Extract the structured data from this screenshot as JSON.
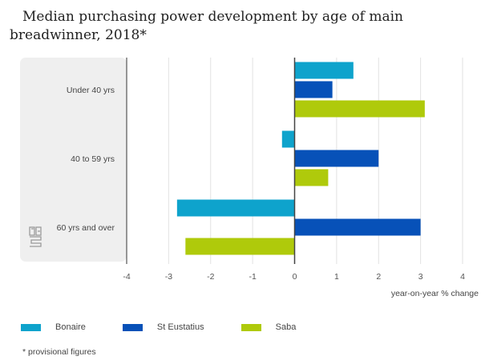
{
  "chart_data": {
    "type": "bar",
    "orientation": "horizontal",
    "title": "Median purchasing power development by age of main breadwinner, 2018*",
    "title_lines": [
      "Median purchasing power development by age of main",
      "breadwinner, 2018*"
    ],
    "categories": [
      "Under 40 yrs",
      "40 to 59 yrs",
      "60 yrs and over"
    ],
    "series": [
      {
        "name": "Bonaire",
        "color": "#0ea3cc",
        "values": [
          1.4,
          -0.3,
          -2.8
        ]
      },
      {
        "name": "St Eustatius",
        "color": "#0751b8",
        "values": [
          0.9,
          2.0,
          3.0
        ]
      },
      {
        "name": "Saba",
        "color": "#afca0b",
        "values": [
          3.1,
          0.8,
          -2.6
        ]
      }
    ],
    "xlabel": "year-on-year % change",
    "ylabel": "",
    "xlim": [
      -4,
      4
    ],
    "xticks": [
      "-4",
      "-3",
      "-2",
      "-1",
      "0",
      "1",
      "2",
      "3",
      "4"
    ],
    "grid": true,
    "legend_position": "bottom-left",
    "footnote": "* provisional figures",
    "logo": "cbs-logo"
  }
}
